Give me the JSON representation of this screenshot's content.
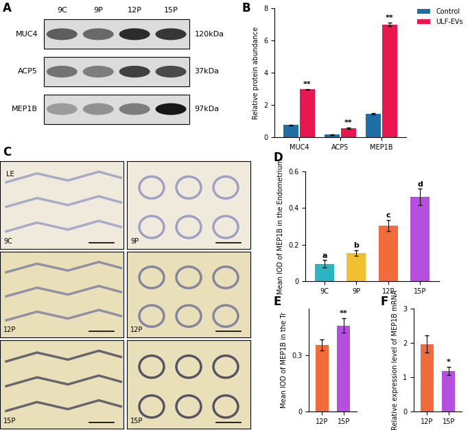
{
  "panel_labels": [
    "A",
    "B",
    "C",
    "D",
    "E",
    "F"
  ],
  "blot": {
    "lanes": [
      "9C",
      "9P",
      "12P",
      "15P"
    ],
    "bands": [
      {
        "name": "MUC4",
        "size": "120kDa",
        "intensity": [
          0.6,
          0.55,
          0.85,
          0.8
        ]
      },
      {
        "name": "ACP5",
        "size": "37kDa",
        "intensity": [
          0.5,
          0.45,
          0.75,
          0.7
        ]
      },
      {
        "name": "MEP1B",
        "size": "97kDa",
        "intensity": [
          0.3,
          0.35,
          0.45,
          0.95
        ]
      }
    ]
  },
  "micrographs": [
    {
      "label": "9C",
      "annotation": "LE"
    },
    {
      "label": "9P"
    },
    {
      "label": "12P"
    },
    {
      "label": "12P"
    },
    {
      "label": "15P"
    },
    {
      "label": "15P"
    }
  ],
  "chart_data": [
    {
      "type": "bar",
      "categories": [
        "MUC4",
        "ACP5",
        "MEP1B"
      ],
      "y_label": "Relative protein abundance",
      "ylim": [
        0,
        8
      ],
      "yticks": [
        0,
        2,
        4,
        6,
        8
      ],
      "legend": "upper right",
      "series": [
        {
          "name": "Control",
          "color": "#1f6fa6",
          "values": [
            0.75,
            0.15,
            1.45
          ],
          "errors": [
            0.03,
            0.02,
            0.05
          ]
        },
        {
          "name": "ULF-EVs",
          "color": "#e8174f",
          "values": [
            2.97,
            0.55,
            7.0
          ],
          "errors": [
            0.02,
            0.04,
            0.1
          ],
          "annotations": [
            "**",
            "**",
            "**"
          ]
        }
      ]
    },
    {
      "type": "bar",
      "categories": [
        "9C",
        "9P",
        "12P",
        "15P"
      ],
      "y_label": "Mean IOD of MEP1B in the Endometrium",
      "ylim": [
        0,
        0.6
      ],
      "yticks": [
        0,
        0.2,
        0.4,
        0.6
      ],
      "values": [
        0.095,
        0.155,
        0.305,
        0.46
      ],
      "errors": [
        0.02,
        0.015,
        0.03,
        0.045
      ],
      "colors": [
        "#2bb5c0",
        "#f0c030",
        "#f26b3a",
        "#b44fe0"
      ],
      "annotations": [
        "a",
        "b",
        "c",
        "d"
      ]
    },
    {
      "type": "bar",
      "categories": [
        "12P",
        "15P"
      ],
      "y_label": "Mean IOD of MEP1B in the Tr",
      "ylim": [
        0,
        0.55
      ],
      "yticks": [
        0,
        0.3
      ],
      "values": [
        0.355,
        0.46
      ],
      "errors": [
        0.03,
        0.04
      ],
      "colors": [
        "#f26b3a",
        "#b44fe0"
      ],
      "annotations": [
        null,
        "**"
      ]
    },
    {
      "type": "bar",
      "categories": [
        "12P",
        "15P"
      ],
      "y_label": "Relative expression level of MEP1B mRNA",
      "ylim": [
        0,
        3
      ],
      "yticks": [
        0,
        1,
        2,
        3
      ],
      "values": [
        1.97,
        1.18
      ],
      "errors": [
        0.25,
        0.12
      ],
      "colors": [
        "#f26b3a",
        "#b44fe0"
      ],
      "annotations": [
        null,
        "*"
      ]
    }
  ]
}
